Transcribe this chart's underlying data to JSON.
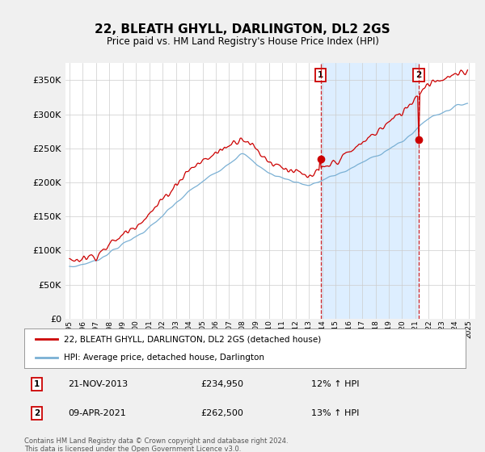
{
  "title": "22, BLEATH GHYLL, DARLINGTON, DL2 2GS",
  "subtitle": "Price paid vs. HM Land Registry's House Price Index (HPI)",
  "yticks": [
    0,
    50000,
    100000,
    150000,
    200000,
    250000,
    300000,
    350000
  ],
  "ylim": [
    0,
    375000
  ],
  "legend_line1": "22, BLEATH GHYLL, DARLINGTON, DL2 2GS (detached house)",
  "legend_line2": "HPI: Average price, detached house, Darlington",
  "annotation1_date": "21-NOV-2013",
  "annotation1_price": "£234,950",
  "annotation1_hpi": "12% ↑ HPI",
  "annotation2_date": "09-APR-2021",
  "annotation2_price": "£262,500",
  "annotation2_hpi": "13% ↑ HPI",
  "footnote": "Contains HM Land Registry data © Crown copyright and database right 2024.\nThis data is licensed under the Open Government Licence v3.0.",
  "red_color": "#cc0000",
  "blue_color": "#7ab0d4",
  "shade_color": "#ddeeff",
  "bg_color": "#f0f0f0",
  "plot_bg": "#ffffff",
  "grid_color": "#cccccc",
  "year1": 2013.87,
  "year2": 2021.25,
  "price1": 234950,
  "price2": 262500
}
